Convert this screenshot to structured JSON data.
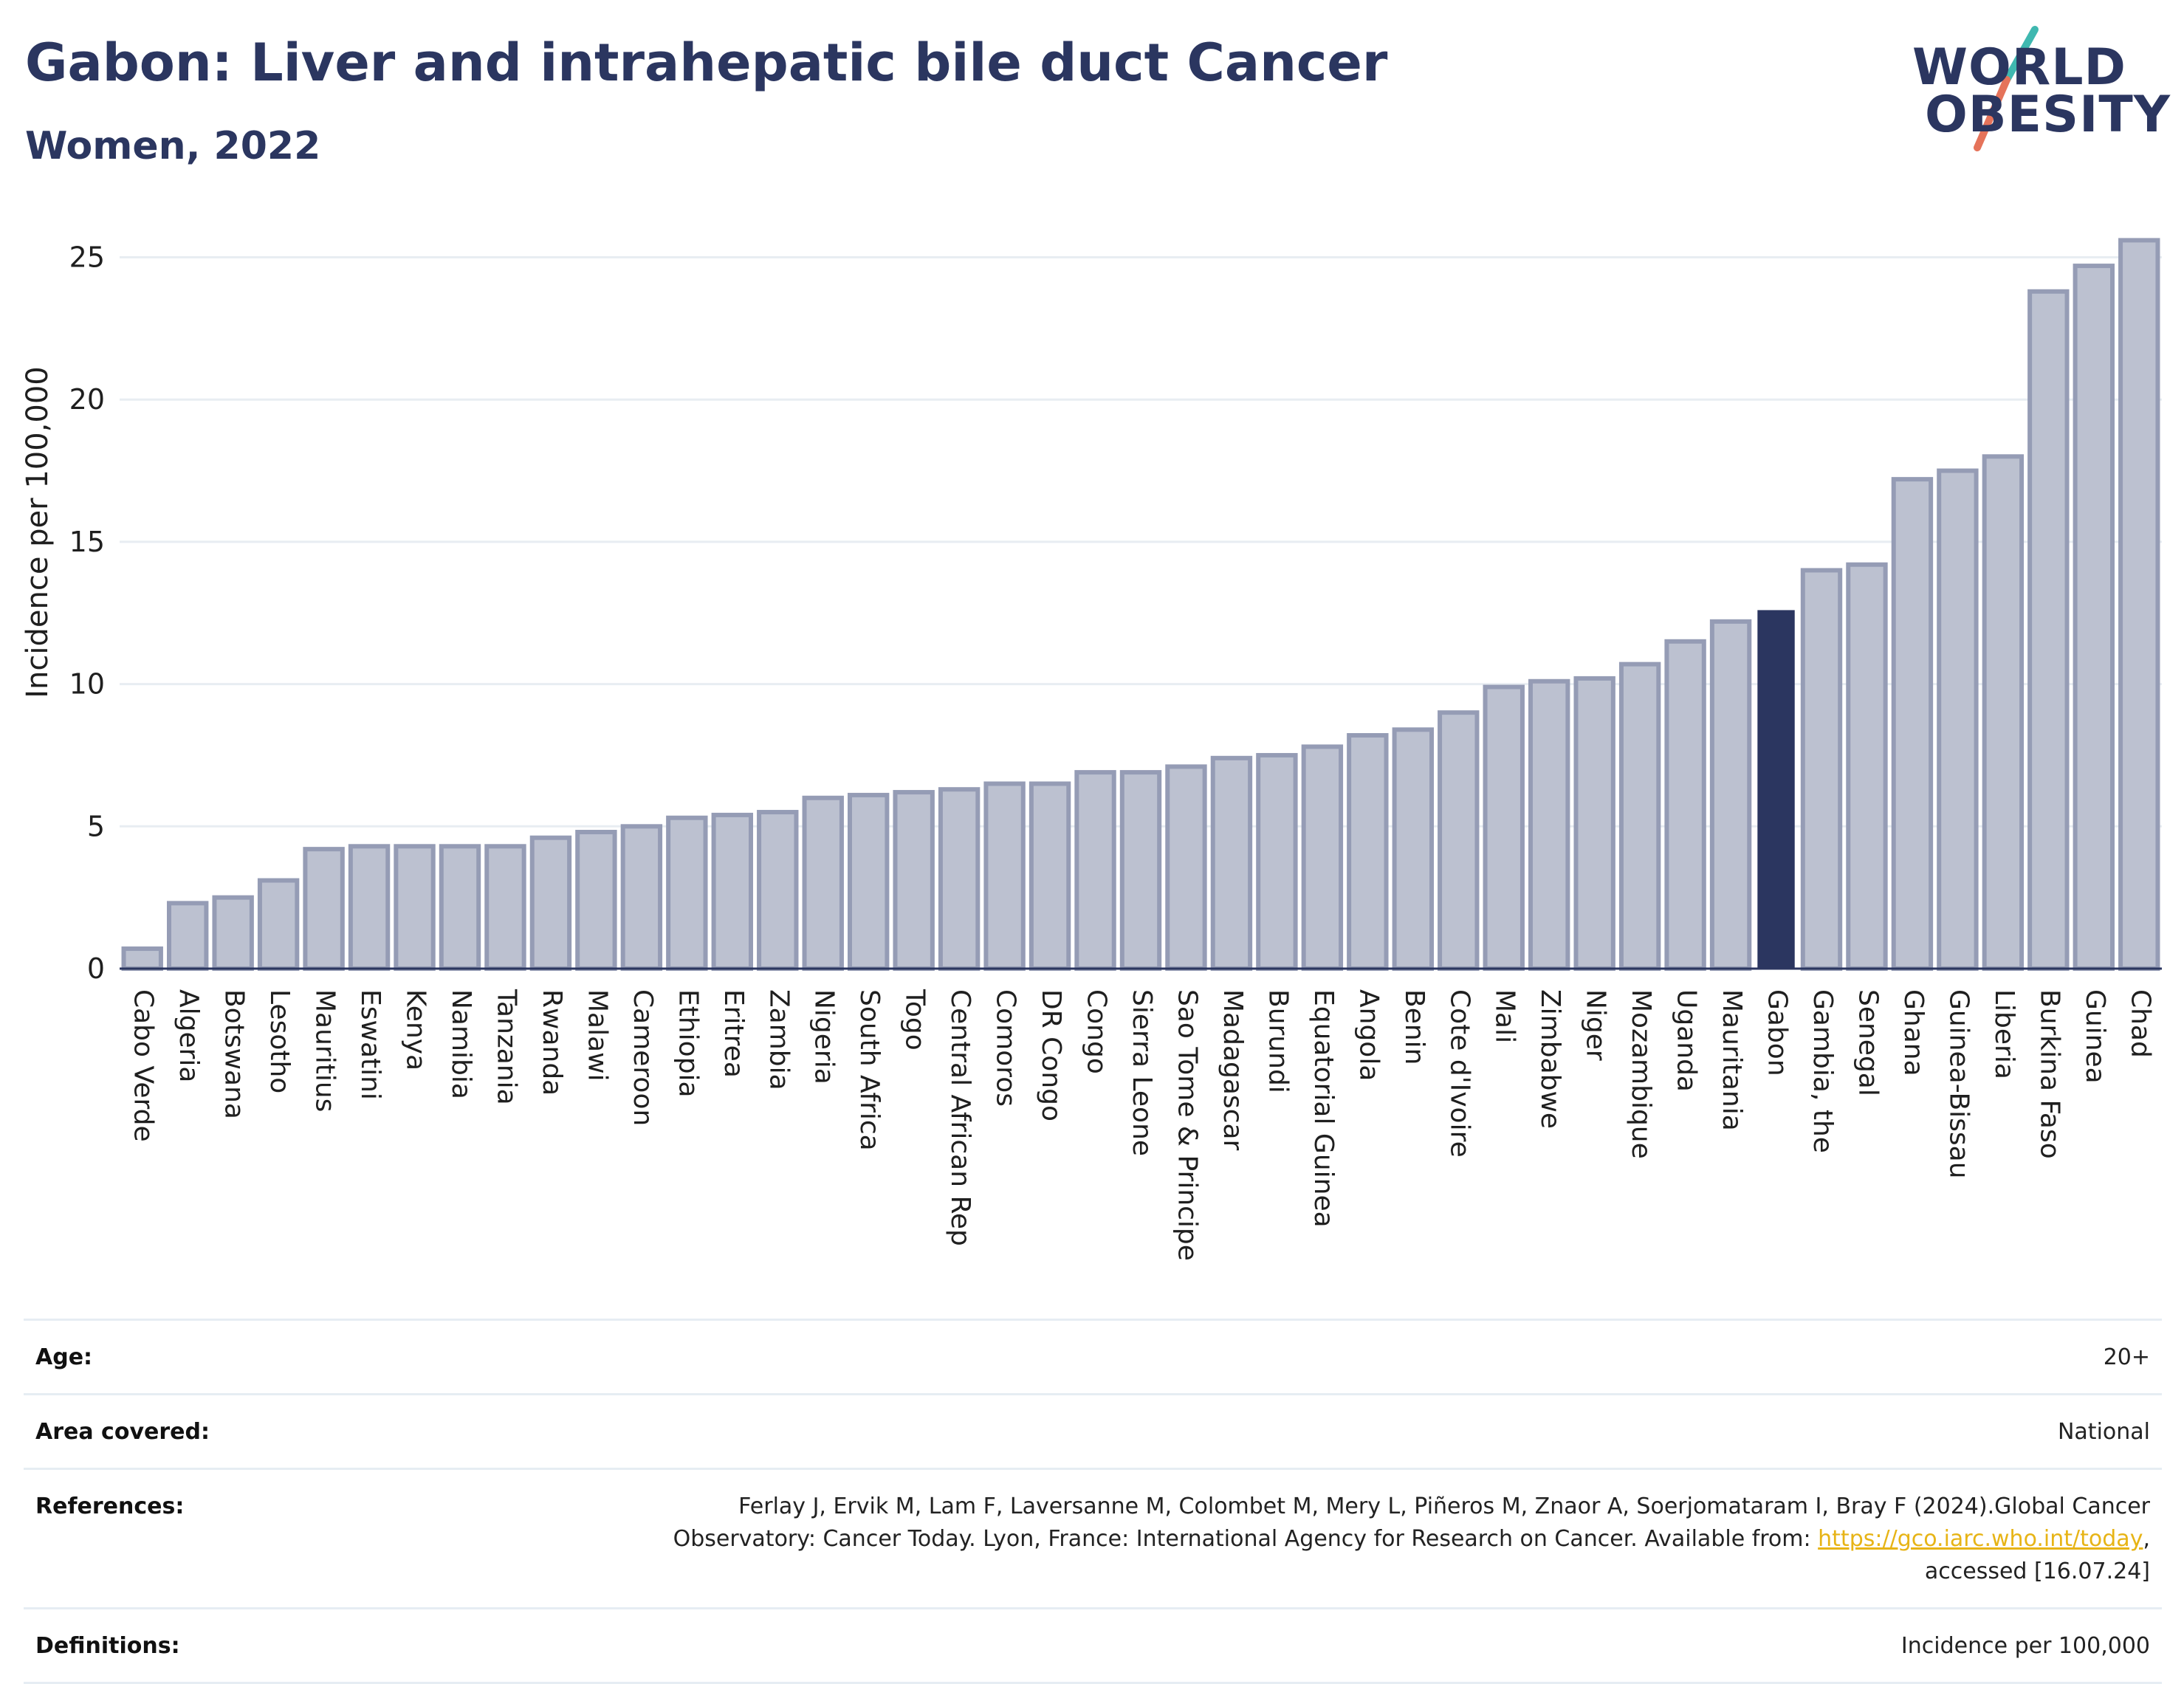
{
  "header": {
    "title": "Gabon: Liver and intrahepatic bile duct Cancer",
    "subtitle": "Women, 2022"
  },
  "logo": {
    "line1": "WORLD",
    "line2": "OBESITY",
    "colors": {
      "text": "#2b3660",
      "slash_teal": "#3fb8b0",
      "slash_coral": "#e5735a"
    }
  },
  "colors": {
    "bar_default_fill": "#bcc1d0",
    "bar_default_stroke": "#959cb5",
    "bar_highlight": "#2b3660",
    "gridline": "#e8edf2",
    "axis": "#2b3660"
  },
  "chart_data": {
    "type": "bar",
    "title": "Gabon: Liver and intrahepatic bile duct Cancer",
    "subtitle": "Women, 2022",
    "xlabel": "",
    "ylabel": "Incidence per 100,000",
    "ylim": [
      0,
      26
    ],
    "yticks": [
      0,
      5,
      10,
      15,
      20,
      25
    ],
    "grid": true,
    "highlight": "Gabon",
    "categories": [
      "Cabo Verde",
      "Algeria",
      "Botswana",
      "Lesotho",
      "Mauritius",
      "Eswatini",
      "Kenya",
      "Namibia",
      "Tanzania",
      "Rwanda",
      "Malawi",
      "Cameroon",
      "Ethiopia",
      "Eritrea",
      "Zambia",
      "Nigeria",
      "South Africa",
      "Togo",
      "Central African Rep",
      "Comoros",
      "DR Congo",
      "Congo",
      "Sierra Leone",
      "Sao Tome & Principe",
      "Madagascar",
      "Burundi",
      "Equatorial Guinea",
      "Angola",
      "Benin",
      "Cote d'Ivoire",
      "Mali",
      "Zimbabwe",
      "Niger",
      "Mozambique",
      "Uganda",
      "Mauritania",
      "Gabon",
      "Gambia, the",
      "Senegal",
      "Ghana",
      "Guinea-Bissau",
      "Liberia",
      "Burkina Faso",
      "Guinea",
      "Chad"
    ],
    "values": [
      0.7,
      2.3,
      2.5,
      3.1,
      4.2,
      4.3,
      4.3,
      4.3,
      4.3,
      4.6,
      4.8,
      5.0,
      5.3,
      5.4,
      5.5,
      6.0,
      6.1,
      6.2,
      6.3,
      6.5,
      6.5,
      6.9,
      6.9,
      7.1,
      7.4,
      7.5,
      7.8,
      8.2,
      8.4,
      9.0,
      9.9,
      10.1,
      10.2,
      10.7,
      11.5,
      12.2,
      12.6,
      14.0,
      14.2,
      17.2,
      17.5,
      18.0,
      23.8,
      24.7,
      25.6
    ]
  },
  "info": {
    "age_label": "Age:",
    "age_value": "20+",
    "area_label": "Area covered:",
    "area_value": "National",
    "references_label": "References:",
    "references_text": "Ferlay J, Ervik M, Lam F, Laversanne M, Colombet M, Mery L, Piñeros M, Znaor A, Soerjomataram I, Bray F (2024).Global Cancer Observatory: Cancer Today. Lyon, France: International Agency for Research on Cancer. Available from:",
    "references_link": "https://gco.iarc.who.int/today",
    "references_suffix": ", accessed [16.07.24]",
    "definitions_label": "Definitions:",
    "definitions_value": "Incidence per 100,000"
  }
}
